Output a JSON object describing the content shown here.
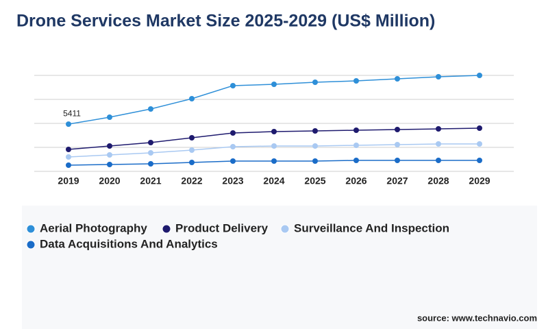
{
  "chart_data": {
    "type": "line",
    "title": "Drone Services Market Size 2025-2029 (US$ Million)",
    "categories": [
      "2019",
      "2020",
      "2021",
      "2022",
      "2023",
      "2024",
      "2025",
      "2026",
      "2027",
      "2028",
      "2029"
    ],
    "series": [
      {
        "name": "Aerial Photography",
        "color": "#2e8fd8",
        "values": [
          5411,
          6207,
          7150,
          8329,
          9821,
          9979,
          10214,
          10371,
          10607,
          10843,
          11000
        ]
      },
      {
        "name": "Product Delivery",
        "color": "#1e1a6e",
        "values": [
          2514,
          2907,
          3300,
          3850,
          4400,
          4557,
          4636,
          4714,
          4793,
          4871,
          4950
        ]
      },
      {
        "name": "Surveillance And Inspection",
        "color": "#a9c9f2",
        "values": [
          1650,
          1886,
          2121,
          2436,
          2829,
          2907,
          2907,
          2986,
          3064,
          3143,
          3143
        ]
      },
      {
        "name": "Data Acquisitions And Analytics",
        "color": "#1a6cc8",
        "values": [
          707,
          786,
          864,
          1021,
          1179,
          1179,
          1179,
          1257,
          1257,
          1257,
          1257
        ]
      }
    ],
    "ylim": [
      0,
      11000
    ],
    "yticks": [
      0,
      2750,
      5500,
      8250,
      11000
    ],
    "grid": true,
    "source": "source: www.technavio.com"
  }
}
